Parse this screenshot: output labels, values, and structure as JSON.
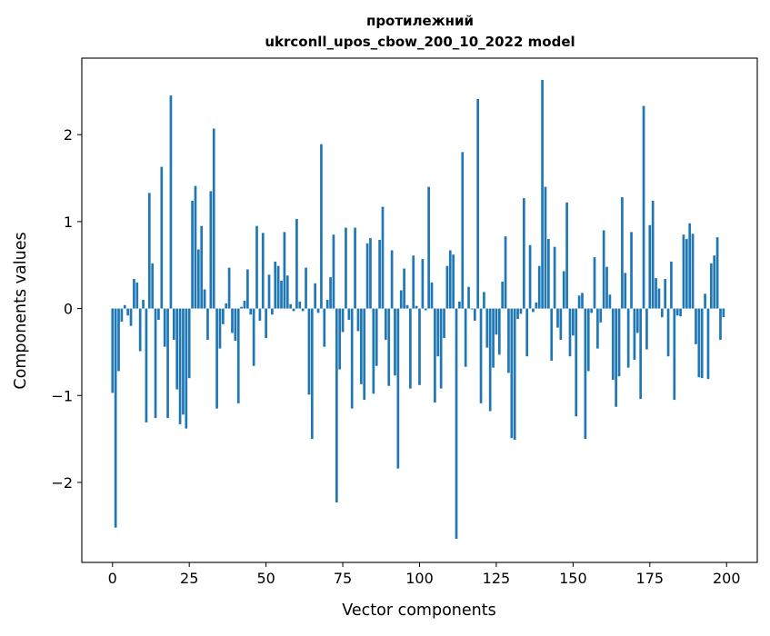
{
  "chart_data": {
    "type": "bar",
    "title": "протилежний",
    "subtitle": "ukrconll_upos_cbow_200_10_2022 model",
    "xlabel": "Vector components",
    "ylabel": "Components values",
    "xlim": [
      -10,
      210
    ],
    "ylim": [
      -2.92,
      2.88
    ],
    "x_ticks": [
      0,
      25,
      50,
      75,
      100,
      125,
      150,
      175,
      200
    ],
    "y_ticks": [
      -2,
      -1,
      0,
      1,
      2
    ],
    "y_tick_labels": [
      "−2",
      "−1",
      "0",
      "1",
      "2"
    ],
    "grid": false,
    "bar_color": "#1f77b4",
    "series": [
      {
        "values": [
          -0.97,
          -2.52,
          -0.72,
          -0.15,
          0.04,
          -0.08,
          -0.2,
          0.34,
          0.3,
          -0.49,
          0.1,
          -1.31,
          1.33,
          0.52,
          -1.26,
          -0.13,
          1.63,
          -0.44,
          -1.26,
          2.45,
          -0.36,
          -0.93,
          -1.33,
          -1.22,
          -1.38,
          -0.8,
          1.24,
          1.41,
          0.68,
          0.95,
          0.22,
          -0.36,
          1.35,
          2.07,
          -1.15,
          -0.46,
          -0.18,
          0.06,
          0.47,
          -0.28,
          -0.37,
          -1.09,
          0.02,
          0.09,
          0.45,
          -0.07,
          -0.66,
          0.95,
          -0.14,
          0.87,
          -0.34,
          0.39,
          -0.07,
          0.54,
          0.49,
          0.32,
          0.88,
          0.38,
          0.05,
          -0.03,
          1.03,
          0.08,
          -0.03,
          0.47,
          -0.99,
          -1.5,
          0.29,
          -0.05,
          1.89,
          -0.44,
          0.1,
          0.36,
          0.85,
          -2.23,
          -0.7,
          -0.27,
          0.93,
          -0.13,
          -1.15,
          0.93,
          -0.26,
          -0.87,
          -1.05,
          0.75,
          0.81,
          -0.98,
          -0.66,
          0.79,
          1.17,
          -0.36,
          -0.89,
          0.67,
          -0.77,
          -1.84,
          0.21,
          0.46,
          0.04,
          -0.92,
          0.61,
          0.03,
          -0.88,
          0.57,
          -0.02,
          1.4,
          0.3,
          -1.08,
          -0.55,
          -0.92,
          -0.34,
          0.49,
          0.67,
          0.62,
          -2.65,
          0.08,
          1.8,
          -0.67,
          0.25,
          -0.01,
          -0.14,
          2.41,
          -1.09,
          0.19,
          -0.45,
          -1.18,
          -0.68,
          -0.3,
          -0.53,
          0.31,
          0.83,
          -0.74,
          -1.49,
          -1.51,
          -0.12,
          -0.06,
          1.27,
          -0.55,
          0.73,
          -0.04,
          0.07,
          0.49,
          2.63,
          1.4,
          0.8,
          -0.6,
          0.71,
          -0.22,
          -0.36,
          0.43,
          1.22,
          -0.55,
          -0.31,
          -1.24,
          0.15,
          0.18,
          -1.5,
          -0.72,
          -0.05,
          0.59,
          -0.46,
          -0.16,
          0.9,
          0.48,
          0.16,
          -0.82,
          -1.13,
          -0.78,
          1.28,
          0.41,
          -0.68,
          0.88,
          -0.59,
          -0.28,
          -1.04,
          2.33,
          -0.47,
          0.96,
          1.24,
          0.35,
          0.23,
          -0.1,
          0.34,
          -0.55,
          0.54,
          -1.05,
          -0.08,
          -0.09,
          0.85,
          0.8,
          0.98,
          0.86,
          -0.41,
          -0.79,
          -0.8,
          0.17,
          -0.81,
          0.52,
          0.61,
          0.82,
          -0.36,
          -0.1
        ]
      }
    ]
  }
}
